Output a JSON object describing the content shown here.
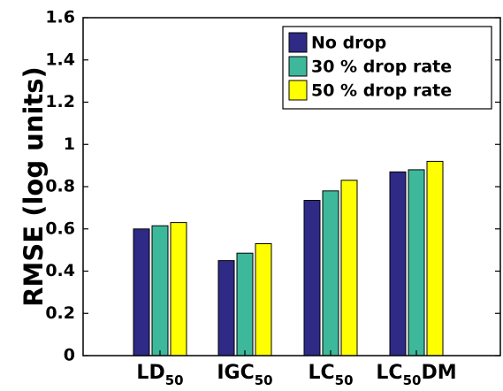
{
  "chart_data": {
    "type": "bar",
    "categories": [
      {
        "base": "LD",
        "sub": "50",
        "suffix": ""
      },
      {
        "base": "IGC",
        "sub": "50",
        "suffix": ""
      },
      {
        "base": "LC",
        "sub": "50",
        "suffix": ""
      },
      {
        "base": "LC",
        "sub": "50",
        "suffix": "DM"
      }
    ],
    "series": [
      {
        "name": "No drop",
        "color": "#2e2a86",
        "values": [
          0.6,
          0.45,
          0.735,
          0.87
        ]
      },
      {
        "name": "30 % drop rate",
        "color": "#3db89b",
        "values": [
          0.615,
          0.485,
          0.78,
          0.88
        ]
      },
      {
        "name": "50 % drop rate",
        "color": "#ffff00",
        "values": [
          0.63,
          0.53,
          0.83,
          0.92
        ]
      }
    ],
    "ylabel": "RMSE (log units)",
    "ylim": [
      0,
      1.6
    ],
    "yticks": [
      "0",
      "0.2",
      "0.4",
      "0.6",
      "0.8",
      "1",
      "1.2",
      "1.4",
      "1.6"
    ],
    "ytick_values": [
      0,
      0.2,
      0.4,
      0.6,
      0.8,
      1.0,
      1.2,
      1.4,
      1.6
    ],
    "legend_position": "top-right",
    "grid": false
  }
}
